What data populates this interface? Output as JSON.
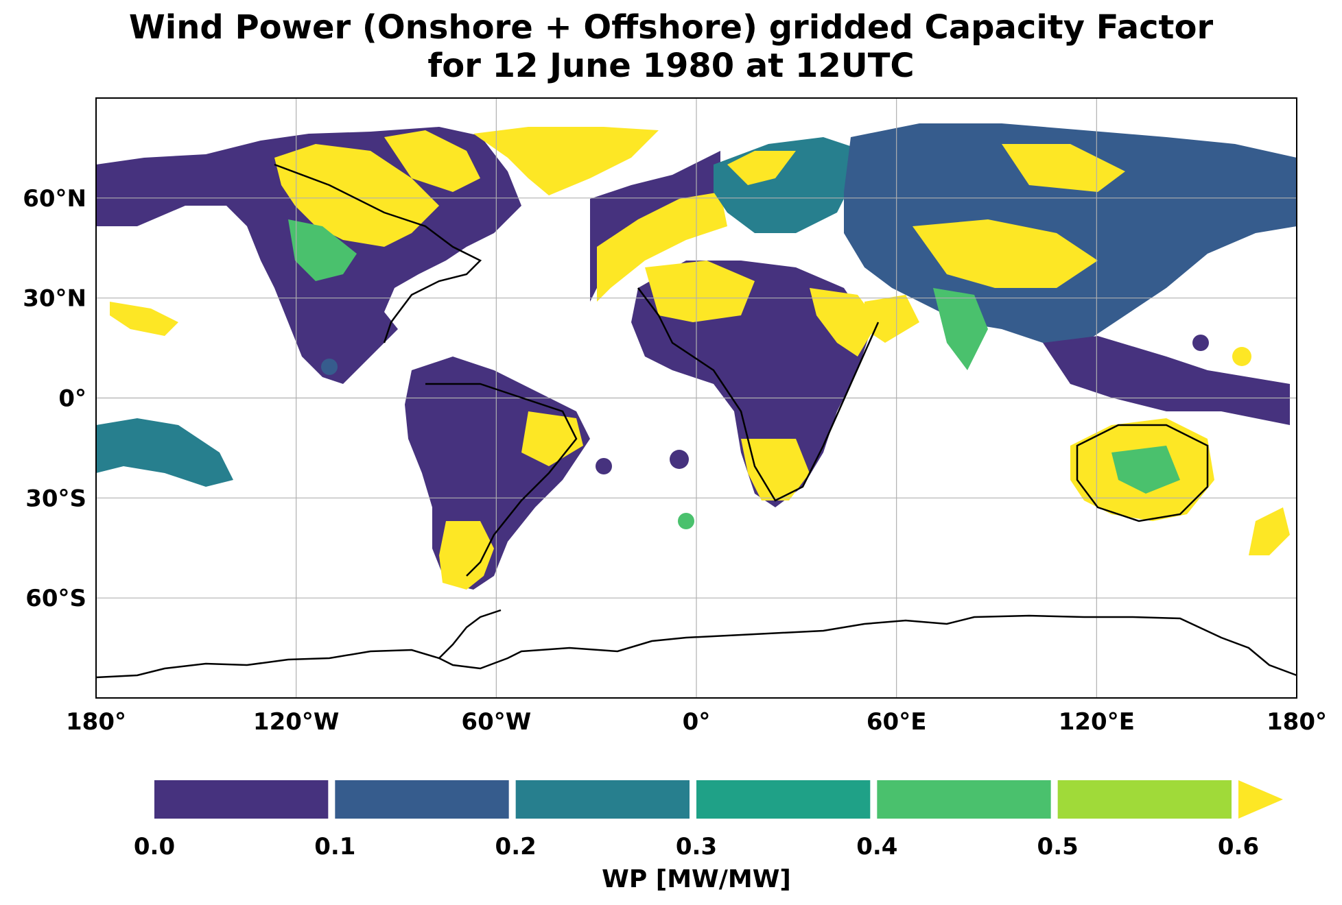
{
  "title_line1": "Wind Power (Onshore + Offshore) gridded Capacity Factor",
  "title_line2": "for 12 June 1980 at 12UTC",
  "map": {
    "lon_range": [
      -180,
      180
    ],
    "lat_range": [
      -90,
      90
    ],
    "grid": true,
    "lon_ticks": [
      {
        "value": -180,
        "label": "180°"
      },
      {
        "value": -120,
        "label": "120°W"
      },
      {
        "value": -60,
        "label": "60°W"
      },
      {
        "value": 0,
        "label": "0°"
      },
      {
        "value": 60,
        "label": "60°E"
      },
      {
        "value": 120,
        "label": "120°E"
      },
      {
        "value": 180,
        "label": "180°"
      }
    ],
    "lat_ticks": [
      {
        "value": 60,
        "label": "60°N"
      },
      {
        "value": 30,
        "label": "30°N"
      },
      {
        "value": 0,
        "label": "0°"
      },
      {
        "value": -30,
        "label": "30°S"
      },
      {
        "value": -60,
        "label": "60°S"
      }
    ]
  },
  "colorbar": {
    "label": "WP [MW/MW]",
    "extend": "max",
    "bounds": [
      0.0,
      0.1,
      0.2,
      0.3,
      0.4,
      0.5,
      0.6
    ],
    "tick_labels": [
      "0.0",
      "0.1",
      "0.2",
      "0.3",
      "0.4",
      "0.5",
      "0.6"
    ],
    "colors": [
      "#46327e",
      "#365c8d",
      "#277f8e",
      "#1fa187",
      "#4ac16d",
      "#a0da39"
    ],
    "extend_color": "#fde725"
  }
}
